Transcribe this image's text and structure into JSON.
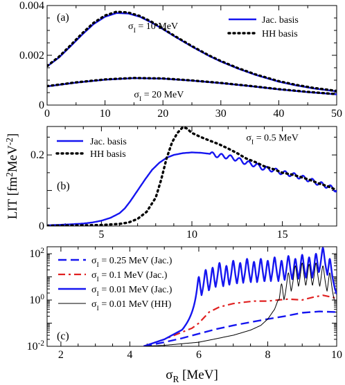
{
  "chart_data": [
    {
      "panel": "a",
      "type": "line",
      "panel_label": "(a)",
      "xlim": [
        0,
        50
      ],
      "ylim": [
        0,
        0.004
      ],
      "x_ticks": [
        "0",
        "10",
        "20",
        "30",
        "40",
        "50"
      ],
      "y_ticks": [
        "0",
        "0.002",
        "0.004"
      ],
      "legend": [
        "Jac. basis",
        "HH basis"
      ],
      "legend_position": "top-right",
      "annotations": [
        {
          "prefix": "σ",
          "sub": "I",
          "suffix": " = 10 MeV",
          "x": 14,
          "y": 0.0032
        },
        {
          "prefix": "σ",
          "sub": "I",
          "suffix": " = 20 MeV",
          "x": 15,
          "y": 0.00045
        }
      ],
      "series": [
        {
          "name": "Jac. basis",
          "style": "solid",
          "color": "#1515f0",
          "curves": [
            {
              "x": [
                0,
                2,
                4,
                6,
                8,
                10,
                12,
                14,
                16,
                18,
                20,
                22,
                25,
                28,
                30,
                33,
                36,
                40,
                43,
                46,
                50
              ],
              "y": [
                0.00155,
                0.0019,
                0.00235,
                0.00282,
                0.00325,
                0.00355,
                0.0037,
                0.00368,
                0.00355,
                0.00332,
                0.00305,
                0.00276,
                0.00235,
                0.00197,
                0.00175,
                0.00146,
                0.00121,
                0.00094,
                0.00079,
                0.00067,
                0.00055
              ]
            },
            {
              "x": [
                0,
                5,
                10,
                15,
                20,
                25,
                30,
                35,
                40,
                45,
                50
              ],
              "y": [
                0.00075,
                0.0009,
                0.00102,
                0.00108,
                0.00106,
                0.00098,
                0.00088,
                0.00076,
                0.00063,
                0.00052,
                0.00043
              ]
            }
          ]
        },
        {
          "name": "HH basis",
          "style": "dotted",
          "color": "#000000",
          "curves": [
            {
              "x": [
                0,
                2,
                4,
                6,
                8,
                10,
                12,
                14,
                16,
                18,
                20,
                22,
                25,
                28,
                30,
                33,
                36,
                40,
                43,
                46,
                50
              ],
              "y": [
                0.00157,
                0.00193,
                0.00239,
                0.00287,
                0.0033,
                0.0036,
                0.00375,
                0.00372,
                0.00358,
                0.00335,
                0.00307,
                0.00278,
                0.00237,
                0.00199,
                0.00177,
                0.00148,
                0.00123,
                0.00096,
                0.00081,
                0.00069,
                0.00057
              ]
            },
            {
              "x": [
                0,
                5,
                10,
                15,
                20,
                25,
                30,
                35,
                40,
                45,
                50
              ],
              "y": [
                0.00076,
                0.00091,
                0.00103,
                0.00109,
                0.00107,
                0.00099,
                0.00089,
                0.00077,
                0.00064,
                0.00053,
                0.00044
              ]
            }
          ]
        }
      ]
    },
    {
      "panel": "b",
      "type": "line",
      "panel_label": "(b)",
      "xlim": [
        2,
        18
      ],
      "ylim": [
        0,
        0.28
      ],
      "x_ticks": [
        "5",
        "10",
        "15"
      ],
      "y_ticks": [
        "0",
        "0.2"
      ],
      "ylabel": {
        "main": "LIT [fm",
        "sup1": "2",
        "mid": "MeV",
        "sup2": "-2",
        "end": "]"
      },
      "legend": [
        "Jac. basis",
        "HH basis"
      ],
      "legend_position": "top-left",
      "annotations": [
        {
          "prefix": "σ",
          "sub": "I",
          "suffix": " = 0.5 MeV",
          "x": 13.0,
          "y": 0.25
        }
      ],
      "series": [
        {
          "name": "Jac. basis",
          "style": "solid",
          "color": "#1515f0",
          "x": [
            2,
            3,
            4,
            4.5,
            5,
            5.5,
            6,
            6.3,
            6.6,
            7,
            7.4,
            7.8,
            8.2,
            8.6,
            9,
            9.5,
            10,
            10.5,
            11,
            11.5,
            12,
            12.5,
            13,
            13.5,
            14,
            14.5,
            15,
            15.5,
            16,
            16.5,
            17,
            17.5,
            18
          ],
          "y": [
            0.002,
            0.004,
            0.007,
            0.01,
            0.015,
            0.023,
            0.036,
            0.05,
            0.07,
            0.1,
            0.13,
            0.158,
            0.178,
            0.192,
            0.2,
            0.205,
            0.207,
            0.206,
            0.203,
            0.198,
            0.195,
            0.188,
            0.178,
            0.172,
            0.162,
            0.158,
            0.15,
            0.145,
            0.138,
            0.13,
            0.12,
            0.112,
            0.101
          ]
        },
        {
          "name": "HH basis",
          "style": "dotted",
          "color": "#000000",
          "x": [
            2,
            4,
            5,
            6,
            6.5,
            7,
            7.5,
            8,
            8.3,
            8.6,
            8.9,
            9.2,
            9.5,
            9.7,
            10,
            10.5,
            11,
            11.5,
            12,
            12.5,
            13,
            13.5,
            14,
            14.5,
            15,
            15.5,
            16,
            16.5,
            17,
            17.5,
            18
          ],
          "y": [
            0.001,
            0.002,
            0.003,
            0.006,
            0.01,
            0.02,
            0.04,
            0.08,
            0.13,
            0.19,
            0.235,
            0.262,
            0.278,
            0.275,
            0.262,
            0.25,
            0.24,
            0.23,
            0.218,
            0.205,
            0.19,
            0.18,
            0.168,
            0.16,
            0.15,
            0.145,
            0.138,
            0.13,
            0.12,
            0.112,
            0.101
          ]
        }
      ]
    },
    {
      "panel": "c",
      "type": "line",
      "panel_label": "(c)",
      "xlim": [
        1.6,
        10
      ],
      "ylim_log": [
        0.01,
        200
      ],
      "log_scale_y": true,
      "x_ticks": [
        "2",
        "4",
        "6",
        "8",
        "10"
      ],
      "y_ticks": [
        {
          "base": "10",
          "exp": "2",
          "value": 100
        },
        {
          "base": "10",
          "exp": "0",
          "value": 1
        },
        {
          "base": "10",
          "exp": "-2",
          "value": 0.01
        }
      ],
      "xlabel": {
        "main": "σ",
        "sub": "R",
        "end": " [MeV]"
      },
      "legend_position": "top-left",
      "series": [
        {
          "name_prefix": "σ",
          "name_sub": "I",
          "name_suffix": " = 0.25 MeV (Jac.)",
          "style": "dashed",
          "color": "#1515f0",
          "x": [
            4.4,
            5,
            5.5,
            6,
            6.5,
            7,
            7.5,
            8,
            8.5,
            9,
            9.5,
            10
          ],
          "y": [
            0.01,
            0.015,
            0.022,
            0.035,
            0.055,
            0.08,
            0.11,
            0.15,
            0.2,
            0.28,
            0.32,
            0.3
          ]
        },
        {
          "name_prefix": "σ",
          "name_sub": "I",
          "name_suffix": " = 0.1 MeV (Jac.)",
          "style": "dashdot",
          "color": "#e02020",
          "x": [
            4.4,
            5,
            5.5,
            5.8,
            6,
            6.3,
            6.6,
            7,
            7.3,
            7.6,
            8,
            8.3,
            8.6,
            9,
            9.3,
            9.6,
            10
          ],
          "y": [
            0.01,
            0.02,
            0.04,
            0.06,
            0.1,
            0.3,
            0.5,
            0.7,
            0.8,
            0.9,
            0.9,
            1.0,
            1.1,
            1.0,
            1.3,
            1.6,
            1.2
          ]
        },
        {
          "name_prefix": "σ",
          "name_sub": "I",
          "name_suffix": " = 0.01 MeV (Jac.)",
          "style": "solid",
          "color": "#1515f0",
          "x": [
            4.4,
            5,
            5.5,
            5.8,
            6,
            10
          ],
          "y": [
            0.01,
            0.02,
            0.05,
            0.1,
            0.4,
            0.7
          ],
          "spikes": [
            6.0,
            6.2,
            6.4,
            6.6,
            6.8,
            7.0,
            7.2,
            7.4,
            7.6,
            7.8,
            8.0,
            8.2,
            8.4,
            8.6,
            8.8,
            9.0,
            9.2,
            9.4,
            9.6,
            9.8
          ],
          "spike_peaks": [
            10,
            20,
            25,
            40,
            30,
            50,
            40,
            60,
            45,
            60,
            50,
            70,
            50,
            80,
            60,
            90,
            70,
            100,
            180,
            60
          ]
        },
        {
          "name_prefix": "σ",
          "name_sub": "I",
          "name_suffix": " = 0.01 MeV (HH)",
          "style": "solid-thin",
          "color": "#000000",
          "x": [
            4.4,
            5,
            6,
            7,
            7.5,
            7.8,
            8.0,
            8.2,
            8.3
          ],
          "y": [
            0.01,
            0.011,
            0.015,
            0.03,
            0.05,
            0.08,
            0.15,
            0.4,
            1.0
          ],
          "spikes": [
            8.4,
            8.6,
            8.8,
            9.0,
            9.2,
            9.4,
            9.6,
            9.8
          ],
          "spike_peaks": [
            5,
            15,
            30,
            40,
            35,
            40,
            30,
            15
          ]
        }
      ]
    }
  ]
}
